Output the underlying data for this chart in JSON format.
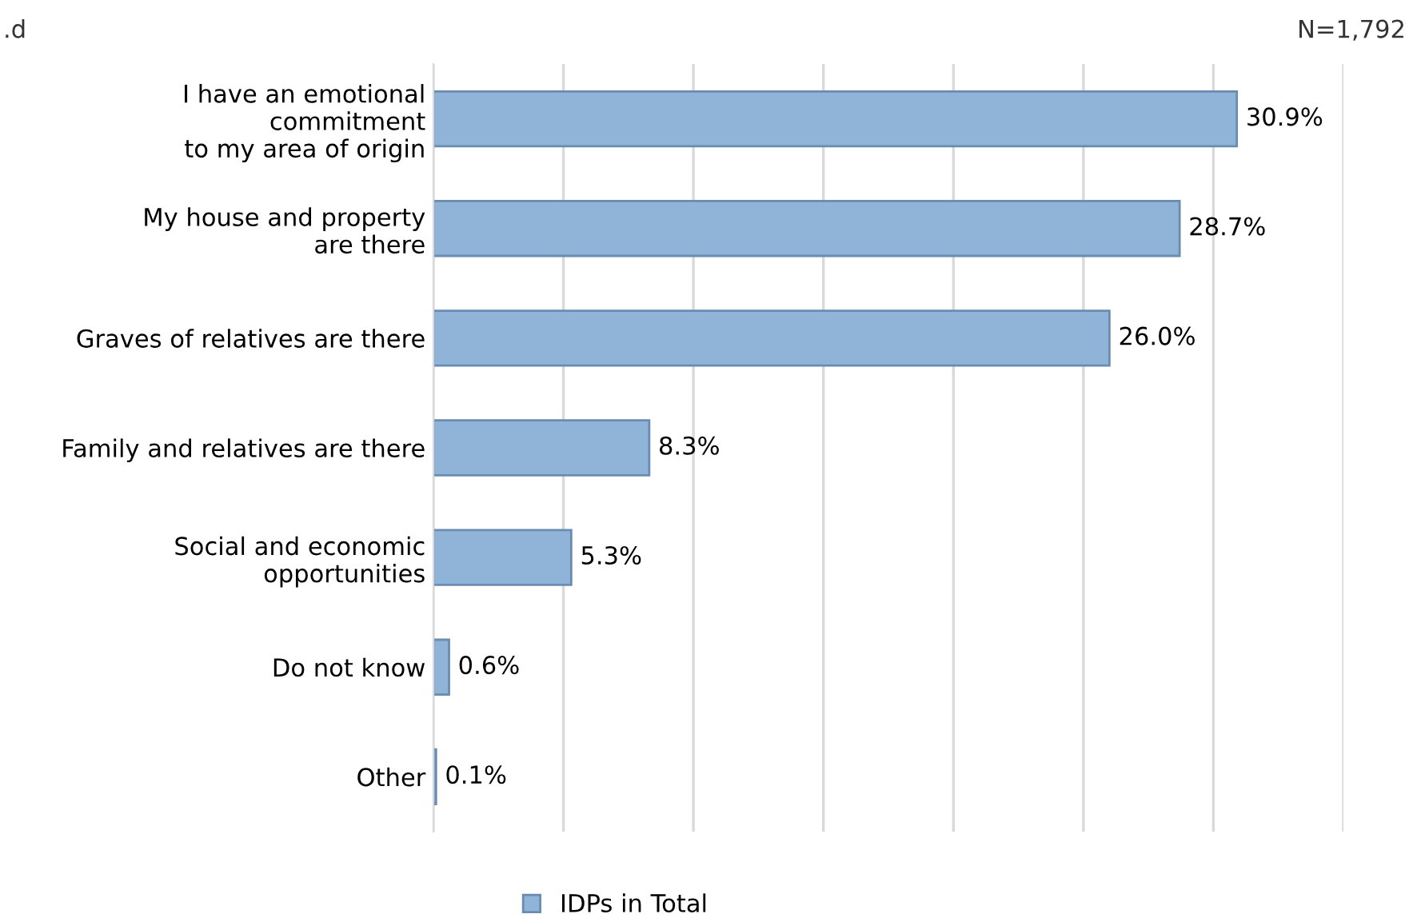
{
  "chart_data": {
    "type": "bar",
    "orientation": "horizontal",
    "categories": [
      "I have an emotional\ncommitment\nto my area of origin",
      "My house and property\nare there",
      "Graves of relatives are there",
      "Family and relatives are there",
      "Social and economic\nopportunities",
      "Do not know",
      "Other"
    ],
    "series": [
      {
        "name": "IDPs in Total",
        "color": "#8fb4d8",
        "values": [
          30.9,
          28.7,
          26.0,
          8.3,
          5.3,
          0.6,
          0.1
        ],
        "value_labels": [
          "30.9%",
          "28.7%",
          "26.0%",
          "8.3%",
          "5.3%",
          "0.6%",
          "0.1%"
        ]
      }
    ],
    "xlim": [
      0,
      35
    ],
    "xticks": [
      {
        "value": 0,
        "label": null
      },
      {
        "value": 5,
        "label": null
      },
      {
        "value": 10,
        "label": null
      },
      {
        "value": 15,
        "label": null
      },
      {
        "value": 20,
        "label": null
      },
      {
        "value": 25,
        "label": null
      },
      {
        "value": 30,
        "label": null
      },
      {
        "value": 35,
        "label": null
      }
    ],
    "tick_labels": "y",
    "grid": "x",
    "legend": "bottom",
    "annotations": [
      ".d",
      "N=1,792"
    ]
  }
}
